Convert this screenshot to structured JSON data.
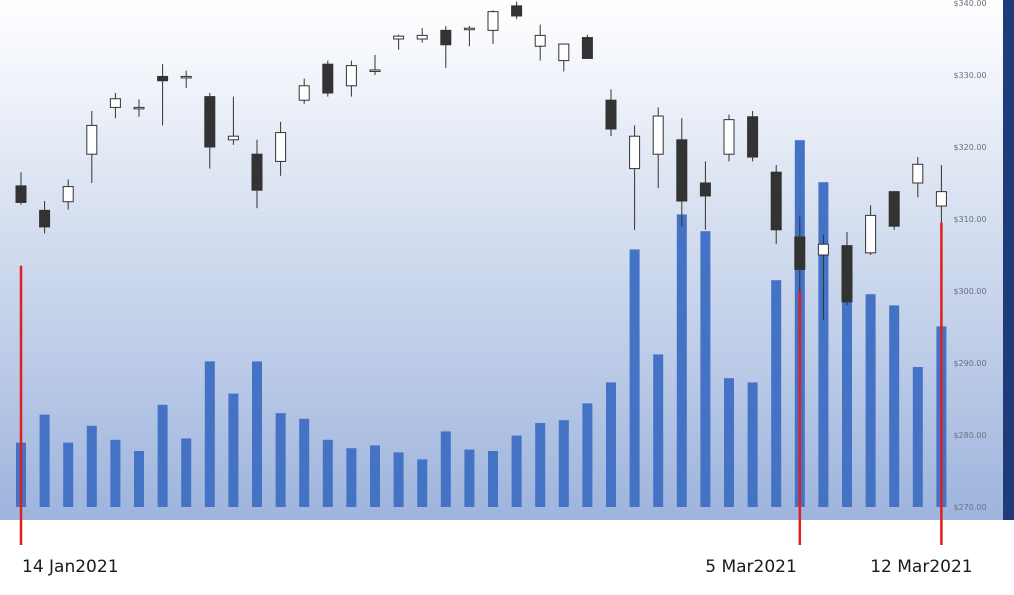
{
  "chart_data": {
    "type": "candlestick",
    "title": "",
    "xlabel": "",
    "ylabel": "",
    "ylim": [
      270,
      340
    ],
    "y_ticks": [
      {
        "value": 340,
        "label": "$340.00"
      },
      {
        "value": 330,
        "label": "$330.00"
      },
      {
        "value": 320,
        "label": "$320.00"
      },
      {
        "value": 310,
        "label": "$310.00"
      },
      {
        "value": 300,
        "label": "$300.00"
      },
      {
        "value": 290,
        "label": "$290.00"
      },
      {
        "value": 280,
        "label": "$280.00"
      },
      {
        "value": 270,
        "label": "$270.00"
      }
    ],
    "axis_position": "right",
    "grid": false,
    "candles": [
      {
        "o": 314.6,
        "h": 316.5,
        "l": 312.0,
        "c": 312.3
      },
      {
        "o": 311.2,
        "h": 312.5,
        "l": 308.0,
        "c": 308.9
      },
      {
        "o": 312.4,
        "h": 315.5,
        "l": 311.3,
        "c": 314.5
      },
      {
        "o": 319.0,
        "h": 325.0,
        "l": 315.0,
        "c": 323.0
      },
      {
        "o": 325.5,
        "h": 327.5,
        "l": 324.0,
        "c": 326.7
      },
      {
        "o": 325.3,
        "h": 326.6,
        "l": 324.2,
        "c": 325.5
      },
      {
        "o": 329.8,
        "h": 331.5,
        "l": 323.0,
        "c": 329.2
      },
      {
        "o": 329.6,
        "h": 330.6,
        "l": 328.2,
        "c": 329.8
      },
      {
        "o": 327.0,
        "h": 327.5,
        "l": 317.0,
        "c": 320.0
      },
      {
        "o": 321.0,
        "h": 327.0,
        "l": 320.3,
        "c": 321.5
      },
      {
        "o": 319.0,
        "h": 321.0,
        "l": 311.5,
        "c": 314.0
      },
      {
        "o": 318.0,
        "h": 323.5,
        "l": 316.0,
        "c": 322.0
      },
      {
        "o": 326.5,
        "h": 329.5,
        "l": 326.0,
        "c": 328.5
      },
      {
        "o": 331.5,
        "h": 332.0,
        "l": 327.0,
        "c": 327.5
      },
      {
        "o": 328.5,
        "h": 332.0,
        "l": 327.0,
        "c": 331.3
      },
      {
        "o": 330.5,
        "h": 332.8,
        "l": 330.0,
        "c": 330.7
      },
      {
        "o": 335.0,
        "h": 335.6,
        "l": 333.5,
        "c": 335.4
      },
      {
        "o": 335.0,
        "h": 336.5,
        "l": 334.5,
        "c": 335.5
      },
      {
        "o": 336.2,
        "h": 336.8,
        "l": 331.0,
        "c": 334.2
      },
      {
        "o": 336.3,
        "h": 336.8,
        "l": 334.0,
        "c": 336.5
      },
      {
        "o": 336.2,
        "h": 339.0,
        "l": 334.3,
        "c": 338.8
      },
      {
        "o": 339.6,
        "h": 340.2,
        "l": 337.8,
        "c": 338.2
      },
      {
        "o": 334.0,
        "h": 337.0,
        "l": 332.0,
        "c": 335.5
      },
      {
        "o": 332.0,
        "h": 334.0,
        "l": 330.5,
        "c": 334.3
      },
      {
        "o": 335.2,
        "h": 335.6,
        "l": 332.3,
        "c": 332.3
      },
      {
        "o": 326.5,
        "h": 328.0,
        "l": 321.5,
        "c": 322.5
      },
      {
        "o": 317.0,
        "h": 323.0,
        "l": 308.5,
        "c": 321.5
      },
      {
        "o": 319.0,
        "h": 325.5,
        "l": 314.3,
        "c": 324.3
      },
      {
        "o": 321.0,
        "h": 324.0,
        "l": 309.0,
        "c": 312.5
      },
      {
        "o": 315.0,
        "h": 318.0,
        "l": 308.5,
        "c": 313.2
      },
      {
        "o": 319.0,
        "h": 324.5,
        "l": 318.0,
        "c": 323.8
      },
      {
        "o": 324.2,
        "h": 325.0,
        "l": 318.0,
        "c": 318.6
      },
      {
        "o": 316.5,
        "h": 317.5,
        "l": 306.5,
        "c": 308.5
      },
      {
        "o": 307.5,
        "h": 310.5,
        "l": 298.0,
        "c": 303.0
      },
      {
        "o": 305.0,
        "h": 307.8,
        "l": 296.0,
        "c": 306.5
      },
      {
        "o": 306.3,
        "h": 308.2,
        "l": 298.0,
        "c": 298.5
      },
      {
        "o": 305.3,
        "h": 311.9,
        "l": 305.0,
        "c": 310.5
      },
      {
        "o": 313.8,
        "h": 313.9,
        "l": 308.5,
        "c": 309.0
      },
      {
        "o": 315.0,
        "h": 318.6,
        "l": 313.0,
        "c": 317.6
      },
      {
        "o": 311.8,
        "h": 317.5,
        "l": 309.5,
        "c": 313.8
      }
    ],
    "volume": [
      {
        "value": 4.6
      },
      {
        "value": 6.6
      },
      {
        "value": 4.6
      },
      {
        "value": 5.8
      },
      {
        "value": 4.8
      },
      {
        "value": 4.0
      },
      {
        "value": 7.3
      },
      {
        "value": 4.9
      },
      {
        "value": 10.4
      },
      {
        "value": 8.1
      },
      {
        "value": 10.4
      },
      {
        "value": 6.7
      },
      {
        "value": 6.3
      },
      {
        "value": 4.8
      },
      {
        "value": 4.2
      },
      {
        "value": 4.4
      },
      {
        "value": 3.9
      },
      {
        "value": 3.4
      },
      {
        "value": 5.4
      },
      {
        "value": 4.1
      },
      {
        "value": 4.0
      },
      {
        "value": 5.1
      },
      {
        "value": 6.0
      },
      {
        "value": 6.2
      },
      {
        "value": 7.4
      },
      {
        "value": 8.9
      },
      {
        "value": 18.4
      },
      {
        "value": 10.9
      },
      {
        "value": 20.9
      },
      {
        "value": 19.7
      },
      {
        "value": 9.2
      },
      {
        "value": 8.9
      },
      {
        "value": 16.2
      },
      {
        "value": 26.2
      },
      {
        "value": 23.2
      },
      {
        "value": 16.5
      },
      {
        "value": 15.2
      },
      {
        "value": 14.4
      },
      {
        "value": 10.0
      },
      {
        "value": 12.9
      }
    ],
    "volume_max": 36,
    "markers": [
      {
        "label": "14 Jan2021",
        "index": 0,
        "top_value": 303.5
      },
      {
        "label": "5 Mar2021",
        "index": 33,
        "top_value": 300.0
      },
      {
        "label": "12 Mar2021",
        "index": 39,
        "top_value": 309.5
      }
    ],
    "colors": {
      "up_fill": "#ffffff",
      "down_fill": "#333333",
      "candle_outline": "#333333",
      "volume_bar": "#4472c4",
      "marker_line": "#e02020",
      "background_top": "#ffffff",
      "background_bottom": "#9eb4dd",
      "right_border": "#1f3b7a"
    }
  }
}
